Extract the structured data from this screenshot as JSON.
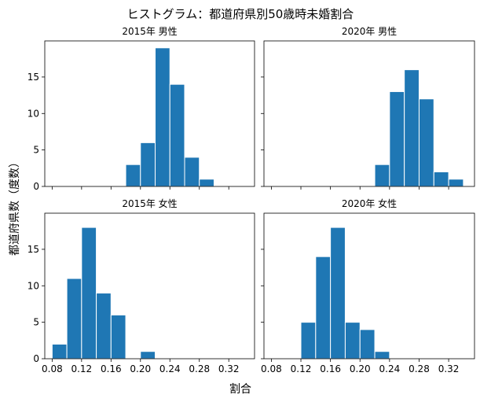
{
  "chart_data": {
    "type": "bar",
    "title": "ヒストグラム：都道府県別50歳時未婚割合",
    "xlabel": "割合",
    "ylabel": "都道府県数（度数）",
    "xlim": [
      0.07,
      0.355
    ],
    "ylim": [
      0,
      19.95
    ],
    "bin_width": 0.02,
    "x_ticks": [
      "0.08",
      "0.12",
      "0.16",
      "0.20",
      "0.24",
      "0.28",
      "0.32"
    ],
    "x_tick_values": [
      0.08,
      0.12,
      0.16,
      0.2,
      0.24,
      0.28,
      0.32
    ],
    "y_ticks": [
      0,
      5,
      10,
      15
    ],
    "bar_color": "#1f77b4",
    "panels": [
      {
        "title": "2015年 男性",
        "bins": [
          {
            "x0": 0.18,
            "x1": 0.2,
            "count": 3
          },
          {
            "x0": 0.2,
            "x1": 0.22,
            "count": 6
          },
          {
            "x0": 0.22,
            "x1": 0.24,
            "count": 19
          },
          {
            "x0": 0.24,
            "x1": 0.26,
            "count": 14
          },
          {
            "x0": 0.26,
            "x1": 0.28,
            "count": 4
          },
          {
            "x0": 0.28,
            "x1": 0.3,
            "count": 1
          }
        ]
      },
      {
        "title": "2020年 男性",
        "bins": [
          {
            "x0": 0.22,
            "x1": 0.24,
            "count": 3
          },
          {
            "x0": 0.24,
            "x1": 0.26,
            "count": 13
          },
          {
            "x0": 0.26,
            "x1": 0.28,
            "count": 16
          },
          {
            "x0": 0.28,
            "x1": 0.3,
            "count": 12
          },
          {
            "x0": 0.3,
            "x1": 0.32,
            "count": 2
          },
          {
            "x0": 0.32,
            "x1": 0.34,
            "count": 1
          }
        ]
      },
      {
        "title": "2015年 女性",
        "bins": [
          {
            "x0": 0.08,
            "x1": 0.1,
            "count": 2
          },
          {
            "x0": 0.1,
            "x1": 0.12,
            "count": 11
          },
          {
            "x0": 0.12,
            "x1": 0.14,
            "count": 18
          },
          {
            "x0": 0.14,
            "x1": 0.16,
            "count": 9
          },
          {
            "x0": 0.16,
            "x1": 0.18,
            "count": 6
          },
          {
            "x0": 0.2,
            "x1": 0.22,
            "count": 1
          }
        ]
      },
      {
        "title": "2020年 女性",
        "bins": [
          {
            "x0": 0.12,
            "x1": 0.14,
            "count": 5
          },
          {
            "x0": 0.14,
            "x1": 0.16,
            "count": 14
          },
          {
            "x0": 0.16,
            "x1": 0.18,
            "count": 18
          },
          {
            "x0": 0.18,
            "x1": 0.2,
            "count": 5
          },
          {
            "x0": 0.2,
            "x1": 0.22,
            "count": 4
          },
          {
            "x0": 0.22,
            "x1": 0.24,
            "count": 1
          }
        ]
      }
    ]
  }
}
